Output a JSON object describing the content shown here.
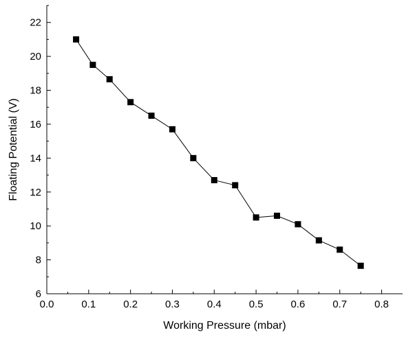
{
  "chart_data": {
    "type": "line",
    "title": "",
    "xlabel": "Working Pressure (mbar)",
    "ylabel": "Floating Potential (V)",
    "xlim": [
      0.0,
      0.85
    ],
    "ylim": [
      6,
      23
    ],
    "grid": false,
    "legend": "none",
    "x_ticks": [
      {
        "value": 0.0,
        "label": "0.0"
      },
      {
        "value": 0.1,
        "label": "0.1"
      },
      {
        "value": 0.2,
        "label": "0.2"
      },
      {
        "value": 0.3,
        "label": "0.3"
      },
      {
        "value": 0.4,
        "label": "0.4"
      },
      {
        "value": 0.5,
        "label": "0.5"
      },
      {
        "value": 0.6,
        "label": "0.6"
      },
      {
        "value": 0.7,
        "label": "0.7"
      },
      {
        "value": 0.8,
        "label": "0.8"
      }
    ],
    "y_ticks": [
      {
        "value": 6,
        "label": "6"
      },
      {
        "value": 8,
        "label": "8"
      },
      {
        "value": 10,
        "label": "10"
      },
      {
        "value": 12,
        "label": "12"
      },
      {
        "value": 14,
        "label": "14"
      },
      {
        "value": 16,
        "label": "16"
      },
      {
        "value": 18,
        "label": "18"
      },
      {
        "value": 20,
        "label": "20"
      },
      {
        "value": 22,
        "label": "22"
      }
    ],
    "series": [
      {
        "color": "#000000",
        "marker": "square",
        "x": [
          0.07,
          0.11,
          0.15,
          0.2,
          0.25,
          0.3,
          0.35,
          0.4,
          0.45,
          0.5,
          0.55,
          0.6,
          0.65,
          0.7,
          0.75
        ],
        "y": [
          21.0,
          19.5,
          18.65,
          17.3,
          16.5,
          15.7,
          14.0,
          12.7,
          12.4,
          10.5,
          10.6,
          10.1,
          9.15,
          8.6,
          7.65
        ]
      }
    ]
  }
}
